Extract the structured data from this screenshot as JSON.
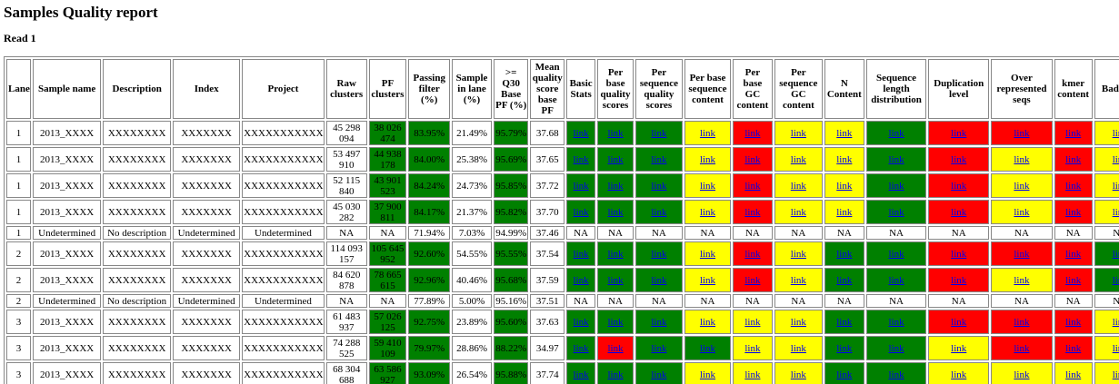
{
  "title": "Samples Quality report",
  "subtitle": "Read 1",
  "table": {
    "header": [
      "Lane",
      "Sample name",
      "Description",
      "Index",
      "Project",
      "Raw clusters",
      "PF clusters",
      "Passing filter (%)",
      "Sample in lane (%)",
      ">= Q30 Base PF (%)",
      "Mean quality score base PF",
      "Basic Stats",
      "Per base quality scores",
      "Per sequence quality scores",
      "Per base sequence content",
      "Per base GC content",
      "Per sequence GC content",
      "N Content",
      "Sequence length distribution",
      "Duplication level",
      "Over represented seqs",
      "kmer content",
      "Bad tiles"
    ],
    "rows": [
      {
        "cells": [
          "1",
          "2013_XXXX",
          "XXXXXXXX",
          "XXXXXXX",
          "XXXXXXXXXXX",
          "45 298 094",
          "38 026 474",
          "83.95%",
          "21.49%",
          "95.79%",
          "37.68",
          "link",
          "link",
          "link",
          "link",
          "link",
          "link",
          "link",
          "link",
          "link",
          "link",
          "link",
          "link"
        ],
        "colors": [
          null,
          null,
          null,
          null,
          null,
          null,
          "#008000",
          "#008000",
          null,
          "#008000",
          null,
          "#008000",
          "#008000",
          "#008000",
          "#ffff00",
          "#ff0000",
          "#ffff00",
          "#ffff00",
          "#008000",
          "#ff0000",
          "#ff0000",
          "#ff0000",
          "#ffff00"
        ]
      },
      {
        "cells": [
          "1",
          "2013_XXXX",
          "XXXXXXXX",
          "XXXXXXX",
          "XXXXXXXXXXX",
          "53 497 910",
          "44 938 178",
          "84.00%",
          "25.38%",
          "95.69%",
          "37.65",
          "link",
          "link",
          "link",
          "link",
          "link",
          "link",
          "link",
          "link",
          "link",
          "link",
          "link",
          "link"
        ],
        "colors": [
          null,
          null,
          null,
          null,
          null,
          null,
          "#008000",
          "#008000",
          null,
          "#008000",
          null,
          "#008000",
          "#008000",
          "#008000",
          "#ffff00",
          "#ff0000",
          "#ffff00",
          "#ffff00",
          "#008000",
          "#ff0000",
          "#ffff00",
          "#ff0000",
          "#ffff00"
        ]
      },
      {
        "cells": [
          "1",
          "2013_XXXX",
          "XXXXXXXX",
          "XXXXXXX",
          "XXXXXXXXXXX",
          "52 115 840",
          "43 901 523",
          "84.24%",
          "24.73%",
          "95.85%",
          "37.72",
          "link",
          "link",
          "link",
          "link",
          "link",
          "link",
          "link",
          "link",
          "link",
          "link",
          "link",
          "link"
        ],
        "colors": [
          null,
          null,
          null,
          null,
          null,
          null,
          "#008000",
          "#008000",
          null,
          "#008000",
          null,
          "#008000",
          "#008000",
          "#008000",
          "#ffff00",
          "#ff0000",
          "#ffff00",
          "#ffff00",
          "#008000",
          "#ff0000",
          "#ffff00",
          "#ff0000",
          "#ffff00"
        ]
      },
      {
        "cells": [
          "1",
          "2013_XXXX",
          "XXXXXXXX",
          "XXXXXXX",
          "XXXXXXXXXXX",
          "45 030 282",
          "37 900 811",
          "84.17%",
          "21.37%",
          "95.82%",
          "37.70",
          "link",
          "link",
          "link",
          "link",
          "link",
          "link",
          "link",
          "link",
          "link",
          "link",
          "link",
          "link"
        ],
        "colors": [
          null,
          null,
          null,
          null,
          null,
          null,
          "#008000",
          "#008000",
          null,
          "#008000",
          null,
          "#008000",
          "#008000",
          "#008000",
          "#ffff00",
          "#ff0000",
          "#ffff00",
          "#ffff00",
          "#008000",
          "#ff0000",
          "#ffff00",
          "#ff0000",
          "#ffff00"
        ]
      },
      {
        "cells": [
          "1",
          "Undetermined",
          "No description",
          "Undetermined",
          "Undetermined",
          "NA",
          "NA",
          "71.94%",
          "7.03%",
          "94.99%",
          "37.46",
          "NA",
          "NA",
          "NA",
          "NA",
          "NA",
          "NA",
          "NA",
          "NA",
          "NA",
          "NA",
          "NA",
          "NA"
        ]
      },
      {
        "cells": [
          "2",
          "2013_XXXX",
          "XXXXXXXX",
          "XXXXXXX",
          "XXXXXXXXXXX",
          "114 093 157",
          "105 645 952",
          "92.60%",
          "54.55%",
          "95.55%",
          "37.54",
          "link",
          "link",
          "link",
          "link",
          "link",
          "link",
          "link",
          "link",
          "link",
          "link",
          "link",
          "link"
        ],
        "colors": [
          null,
          null,
          null,
          null,
          null,
          null,
          "#008000",
          "#008000",
          null,
          "#008000",
          null,
          "#008000",
          "#008000",
          "#008000",
          "#ffff00",
          "#ff0000",
          "#ffff00",
          "#008000",
          "#008000",
          "#ff0000",
          "#ff0000",
          "#ff0000",
          "#008000"
        ]
      },
      {
        "cells": [
          "2",
          "2013_XXXX",
          "XXXXXXXX",
          "XXXXXXX",
          "XXXXXXXXXXX",
          "84 620 878",
          "78 665 615",
          "92.96%",
          "40.46%",
          "95.68%",
          "37.59",
          "link",
          "link",
          "link",
          "link",
          "link",
          "link",
          "link",
          "link",
          "link",
          "link",
          "link",
          "link"
        ],
        "colors": [
          null,
          null,
          null,
          null,
          null,
          null,
          "#008000",
          "#008000",
          null,
          "#008000",
          null,
          "#008000",
          "#008000",
          "#008000",
          "#ffff00",
          "#ff0000",
          "#ffff00",
          "#008000",
          "#008000",
          "#ff0000",
          "#ffff00",
          "#ff0000",
          "#008000"
        ]
      },
      {
        "cells": [
          "2",
          "Undetermined",
          "No description",
          "Undetermined",
          "Undetermined",
          "NA",
          "NA",
          "77.89%",
          "5.00%",
          "95.16%",
          "37.51",
          "NA",
          "NA",
          "NA",
          "NA",
          "NA",
          "NA",
          "NA",
          "NA",
          "NA",
          "NA",
          "NA",
          "NA"
        ]
      },
      {
        "cells": [
          "3",
          "2013_XXXX",
          "XXXXXXXX",
          "XXXXXXX",
          "XXXXXXXXXXX",
          "61 483 937",
          "57 026 125",
          "92.75%",
          "23.89%",
          "95.60%",
          "37.63",
          "link",
          "link",
          "link",
          "link",
          "link",
          "link",
          "link",
          "link",
          "link",
          "link",
          "link",
          "link"
        ],
        "colors": [
          null,
          null,
          null,
          null,
          null,
          null,
          "#008000",
          "#008000",
          null,
          "#008000",
          null,
          "#008000",
          "#008000",
          "#008000",
          "#ffff00",
          "#ffff00",
          "#ffff00",
          "#008000",
          "#008000",
          "#ff0000",
          "#ff0000",
          "#ff0000",
          "#ffff00"
        ]
      },
      {
        "cells": [
          "3",
          "2013_XXXX",
          "XXXXXXXX",
          "XXXXXXX",
          "XXXXXXXXXXX",
          "74 288 525",
          "59 410 109",
          "79.97%",
          "28.86%",
          "88.22%",
          "34.97",
          "link",
          "link",
          "link",
          "link",
          "link",
          "link",
          "link",
          "link",
          "link",
          "link",
          "link",
          "link"
        ],
        "colors": [
          null,
          null,
          null,
          null,
          null,
          null,
          "#008000",
          "#008000",
          null,
          "#008000",
          null,
          "#008000",
          "#ff0000",
          "#008000",
          "#008000",
          "#ffff00",
          "#ffff00",
          "#008000",
          "#008000",
          "#ffff00",
          "#ff0000",
          "#ff0000",
          "#ffff00"
        ]
      },
      {
        "cells": [
          "3",
          "2013_XXXX",
          "XXXXXXXX",
          "XXXXXXX",
          "XXXXXXXXXXX",
          "68 304 688",
          "63 586 927",
          "93.09%",
          "26.54%",
          "95.88%",
          "37.74",
          "link",
          "link",
          "link",
          "link",
          "link",
          "link",
          "link",
          "link",
          "link",
          "link",
          "link",
          "link"
        ],
        "colors": [
          null,
          null,
          null,
          null,
          null,
          null,
          "#008000",
          "#008000",
          null,
          "#008000",
          null,
          "#008000",
          "#008000",
          "#008000",
          "#ffff00",
          "#ffff00",
          "#ffff00",
          "#008000",
          "#008000",
          "#ffff00",
          "#ffff00",
          "#ffff00",
          "#ffff00"
        ]
      }
    ]
  }
}
